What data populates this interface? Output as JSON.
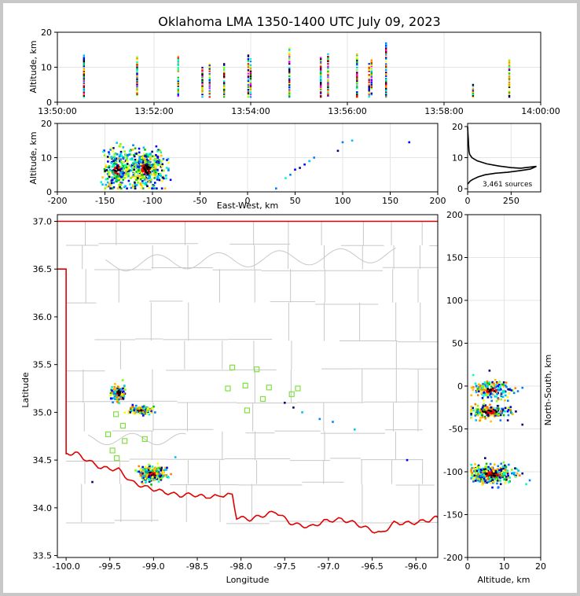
{
  "title": "Oklahoma LMA 1350-1400 UTC July 09, 2023",
  "colors": {
    "state": "#e00000",
    "county": "#c8c8c8",
    "station": "#80e040",
    "profile": "#000000"
  },
  "chart_data": [
    {
      "id": "time_altitude",
      "type": "scatter",
      "ylabel": "Altitude, km",
      "ylim": [
        0,
        20
      ],
      "yticks": [
        "0",
        "10",
        "20"
      ],
      "xticks": [
        "13:50:00",
        "13:52:00",
        "13:54:00",
        "13:56:00",
        "13:58:00",
        "14:00:00"
      ],
      "xlim_minutes": [
        0,
        10
      ],
      "bursts": [
        {
          "t": 0.55,
          "lo": 1.5,
          "hi": 13.5
        },
        {
          "t": 1.65,
          "lo": 2.0,
          "hi": 13.0
        },
        {
          "t": 2.5,
          "lo": 1.8,
          "hi": 13.2
        },
        {
          "t": 3.0,
          "lo": 1.5,
          "hi": 10.0
        },
        {
          "t": 3.15,
          "lo": 1.5,
          "hi": 11.0
        },
        {
          "t": 3.45,
          "lo": 1.5,
          "hi": 11.0
        },
        {
          "t": 3.95,
          "lo": 1.5,
          "hi": 13.5
        },
        {
          "t": 4.0,
          "lo": 1.5,
          "hi": 12.5
        },
        {
          "t": 4.8,
          "lo": 1.5,
          "hi": 15.5
        },
        {
          "t": 5.45,
          "lo": 1.5,
          "hi": 13.0
        },
        {
          "t": 5.6,
          "lo": 1.5,
          "hi": 14.0
        },
        {
          "t": 6.2,
          "lo": 1.5,
          "hi": 14.0
        },
        {
          "t": 6.45,
          "lo": 1.5,
          "hi": 11.0
        },
        {
          "t": 6.5,
          "lo": 1.5,
          "hi": 12.0
        },
        {
          "t": 6.8,
          "lo": 1.5,
          "hi": 17.0
        },
        {
          "t": 8.6,
          "lo": 1.5,
          "hi": 5.0
        },
        {
          "t": 9.35,
          "lo": 1.5,
          "hi": 12.5
        }
      ]
    },
    {
      "id": "ew_altitude",
      "type": "scatter",
      "xlabel": "East-West, km",
      "ylabel": "Altitude, km",
      "xlim": [
        -200,
        200
      ],
      "ylim": [
        0,
        20
      ],
      "xticks": [
        "-200",
        "-150",
        "-100",
        "-50",
        "0",
        "50",
        "100",
        "150",
        "200"
      ],
      "yticks": [
        "0",
        "10",
        "20"
      ],
      "clusters": [
        {
          "x": -137,
          "y": 6.5,
          "sx": 7,
          "sy": 2.8,
          "n": 260
        },
        {
          "x": -107,
          "y": 6.5,
          "sx": 10,
          "sy": 2.8,
          "n": 420
        }
      ],
      "trail": [
        [
          30,
          1
        ],
        [
          40,
          4
        ],
        [
          45,
          5
        ],
        [
          50,
          6.5
        ],
        [
          55,
          7
        ],
        [
          60,
          8
        ],
        [
          65,
          9
        ],
        [
          70,
          10
        ],
        [
          95,
          12
        ],
        [
          100,
          14.5
        ],
        [
          110,
          15
        ],
        [
          170,
          14.5
        ]
      ]
    },
    {
      "id": "altitude_histogram",
      "type": "line",
      "annotation": "3,461 sources",
      "xlim": [
        0,
        420
      ],
      "ylim": [
        -1,
        21
      ],
      "xticks": [
        "0",
        "250"
      ],
      "yticks": [
        "0",
        "10",
        "20"
      ],
      "profile": [
        [
          0,
          20
        ],
        [
          2,
          18
        ],
        [
          4,
          16
        ],
        [
          6,
          14
        ],
        [
          8,
          12
        ],
        [
          12,
          11
        ],
        [
          25,
          10
        ],
        [
          55,
          9
        ],
        [
          110,
          8
        ],
        [
          180,
          7.3
        ],
        [
          250,
          6.8
        ],
        [
          305,
          6.6
        ],
        [
          395,
          7.2
        ],
        [
          360,
          6.3
        ],
        [
          300,
          5.8
        ],
        [
          230,
          5.3
        ],
        [
          160,
          5.0
        ],
        [
          100,
          4.5
        ],
        [
          60,
          3.8
        ],
        [
          30,
          3.0
        ],
        [
          15,
          2.5
        ],
        [
          5,
          1.8
        ],
        [
          0,
          1.5
        ]
      ]
    },
    {
      "id": "plan_view",
      "type": "scatter",
      "xlabel": "Longitude",
      "ylabel": "Latitude",
      "xlim": [
        -100.1,
        -95.75
      ],
      "ylim": [
        33.48,
        37.07
      ],
      "xticks": [
        "-100.0",
        "-99.5",
        "-99.0",
        "-98.5",
        "-98.0",
        "-97.5",
        "-97.0",
        "-96.5",
        "-96.0"
      ],
      "yticks": [
        "37.0",
        "36.5",
        "36.0",
        "35.5",
        "35.0",
        "34.5",
        "34.0",
        "33.5"
      ],
      "clusters": [
        {
          "lon": -99.4,
          "lat": 35.2,
          "sx": 0.035,
          "sy": 0.04,
          "n": 140
        },
        {
          "lon": -99.15,
          "lat": 35.02,
          "sx": 0.06,
          "sy": 0.02,
          "n": 140
        },
        {
          "lon": -99.02,
          "lat": 34.35,
          "sx": 0.07,
          "sy": 0.04,
          "n": 330
        }
      ],
      "stations": [
        [
          -98.1,
          35.47
        ],
        [
          -97.82,
          35.45
        ],
        [
          -98.15,
          35.25
        ],
        [
          -97.95,
          35.28
        ],
        [
          -97.68,
          35.26
        ],
        [
          -97.75,
          35.14
        ],
        [
          -97.42,
          35.19
        ],
        [
          -97.35,
          35.25
        ],
        [
          -97.93,
          35.02
        ],
        [
          -99.43,
          34.98
        ],
        [
          -99.35,
          34.86
        ],
        [
          -99.52,
          34.77
        ],
        [
          -99.33,
          34.7
        ],
        [
          -99.1,
          34.72
        ],
        [
          -99.47,
          34.6
        ],
        [
          -99.42,
          34.52
        ]
      ]
    },
    {
      "id": "altitude_ns",
      "type": "scatter",
      "xlabel": "Altitude, km",
      "ylabel": "North-South, km",
      "xlim": [
        0,
        20
      ],
      "ylim": [
        -200,
        200
      ],
      "xticks": [
        "0",
        "10",
        "20"
      ],
      "yticks": [
        "200",
        "150",
        "100",
        "50",
        "0",
        "-50",
        "-100",
        "-150",
        "-200"
      ],
      "clusters": [
        {
          "alt": 6.5,
          "ns": -5,
          "sx": 2.5,
          "sy": 5,
          "n": 160
        },
        {
          "alt": 6.0,
          "ns": -30,
          "sx": 3,
          "sy": 4,
          "n": 160
        },
        {
          "alt": 6.5,
          "ns": -103,
          "sx": 3,
          "sy": 5,
          "n": 360
        }
      ]
    }
  ]
}
